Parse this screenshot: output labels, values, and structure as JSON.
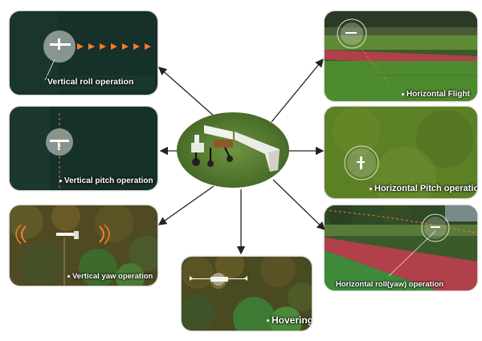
{
  "panels": {
    "vertical_roll": {
      "label": "Vertical roll operation"
    },
    "vertical_pitch": {
      "label": "Vertical pitch operation"
    },
    "vertical_yaw": {
      "label": "Vertical yaw operation"
    },
    "horizontal_flight": {
      "label": "Horizontal Flight"
    },
    "horizontal_pitch": {
      "label": "Horizontal Pitch operation"
    },
    "horizontal_roll_yaw": {
      "label": "Horizontal roll(yaw) operation"
    },
    "hovering": {
      "label": "Hovering"
    }
  },
  "colors": {
    "dark_night": "#16302a",
    "grass": "#5d8a2c",
    "track": "#b0404a",
    "forest": "#5a5a2a",
    "marker": "#ff7a2a",
    "arrow": "#222222"
  }
}
